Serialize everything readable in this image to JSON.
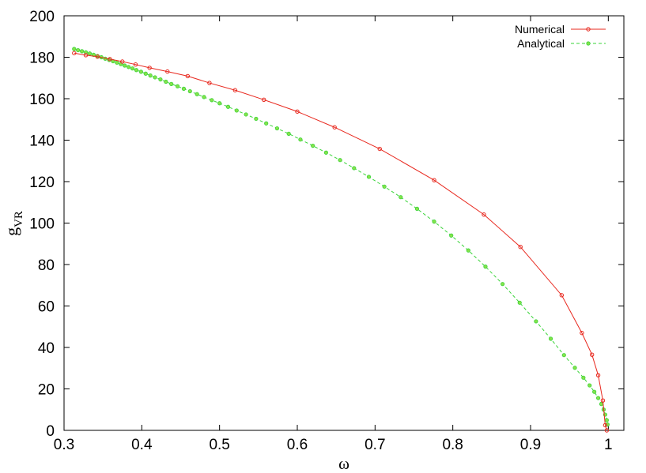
{
  "chart_data": {
    "type": "line",
    "xlabel": "ω",
    "ylabel_main": "g",
    "ylabel_sub": "VR",
    "xlim": [
      0.3,
      1.02
    ],
    "ylim": [
      0,
      200
    ],
    "xticks": [
      "0.3",
      "0.4",
      "0.5",
      "0.6",
      "0.7",
      "0.8",
      "0.9",
      "1"
    ],
    "yticks": [
      "0",
      "20",
      "40",
      "60",
      "80",
      "100",
      "120",
      "140",
      "160",
      "180",
      "200"
    ],
    "grid": false,
    "legend_position": "top-right",
    "series": [
      {
        "name": "Numerical",
        "color": "#e8281e",
        "dashed": false,
        "marker_color": "#e8281e",
        "x": [
          0.313,
          0.328,
          0.343,
          0.359,
          0.375,
          0.392,
          0.41,
          0.433,
          0.459,
          0.487,
          0.52,
          0.557,
          0.6,
          0.648,
          0.706,
          0.776,
          0.84,
          0.887,
          0.94,
          0.966,
          0.979,
          0.987,
          0.993,
          0.996,
          0.998
        ],
        "y": [
          182,
          181,
          180.3,
          179.1,
          177.9,
          176.5,
          174.9,
          173.1,
          170.9,
          167.6,
          164.1,
          159.5,
          153.8,
          146.2,
          135.8,
          120.7,
          104.1,
          88.5,
          65.2,
          47,
          36.5,
          26.6,
          14.4,
          2.5,
          0
        ]
      },
      {
        "name": "Analytical",
        "color": "#3ad43a",
        "dashed": true,
        "marker_color": "#86e24a",
        "x": [
          0.313,
          0.318,
          0.323,
          0.328,
          0.333,
          0.338,
          0.343,
          0.348,
          0.353,
          0.358,
          0.363,
          0.368,
          0.373,
          0.378,
          0.383,
          0.388,
          0.393,
          0.399,
          0.405,
          0.411,
          0.417,
          0.424,
          0.431,
          0.438,
          0.446,
          0.454,
          0.462,
          0.471,
          0.48,
          0.49,
          0.5,
          0.511,
          0.522,
          0.534,
          0.547,
          0.56,
          0.574,
          0.589,
          0.604,
          0.62,
          0.637,
          0.655,
          0.673,
          0.692,
          0.712,
          0.733,
          0.754,
          0.776,
          0.798,
          0.82,
          0.842,
          0.864,
          0.886,
          0.907,
          0.926,
          0.943,
          0.957,
          0.968,
          0.976,
          0.982,
          0.987,
          0.991,
          0.994,
          0.996,
          0.998,
          0.999
        ],
        "y": [
          184,
          183.4,
          182.9,
          182.4,
          181.8,
          181.2,
          180.6,
          180,
          179.3,
          178.7,
          178.1,
          177.4,
          176.7,
          176,
          175.3,
          174.6,
          173.8,
          173,
          172.1,
          171.2,
          170.3,
          169.3,
          168.2,
          167.1,
          166,
          164.8,
          163.6,
          162.2,
          160.8,
          159.3,
          157.8,
          156.1,
          154.3,
          152.4,
          150.3,
          148.1,
          145.7,
          143.1,
          140.3,
          137.3,
          134,
          130.4,
          126.5,
          122.3,
          117.6,
          112.5,
          106.9,
          100.7,
          94,
          86.8,
          79,
          70.6,
          61.6,
          52.6,
          44.2,
          36.3,
          30.2,
          25.4,
          21.7,
          18.6,
          15.6,
          12.7,
          10,
          7.6,
          4.9,
          2.8
        ]
      }
    ]
  }
}
